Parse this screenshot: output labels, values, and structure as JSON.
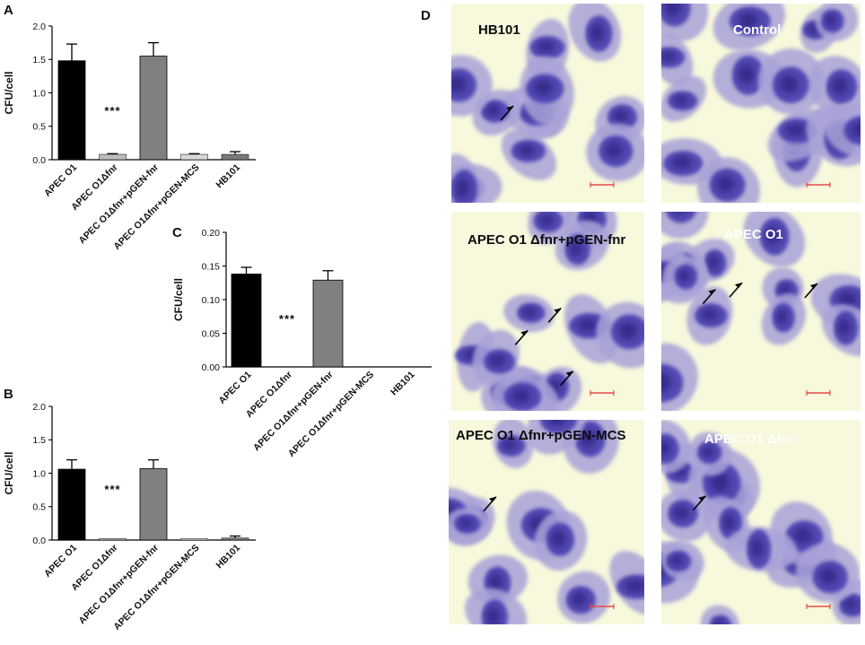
{
  "figure": {
    "panel_labels": [
      "A",
      "B",
      "C",
      "D"
    ]
  },
  "colors": {
    "bar_black": "#000000",
    "bar_light_gray": "#bdbdbd",
    "bar_mid_gray": "#808080",
    "micro_background": "#f7f8dc",
    "cell_purple": "#4a3fb0",
    "scale_bar": "#e64a4a"
  },
  "chart_data": [
    {
      "panel": "A",
      "type": "bar",
      "ylabel": "CFU/cell",
      "xlabel": "",
      "ylim": [
        0,
        2.0
      ],
      "yticks": [
        "0.0",
        "0.5",
        "1.0",
        "1.5",
        "2.0"
      ],
      "categories": [
        "APEC O1",
        "APEC O1Δfnr",
        "APEC O1Δfnr+pGEN-fnr",
        "APEC O1Δfnr+pGEN-MCS",
        "HB101"
      ],
      "values": [
        1.48,
        0.08,
        1.55,
        0.08,
        0.08
      ],
      "errors": [
        0.25,
        0.01,
        0.2,
        0.01,
        0.04
      ],
      "bar_colors": [
        "#000000",
        "#bdbdbd",
        "#808080",
        "#d9d9d9",
        "#7a7a7a"
      ],
      "annotations": [
        {
          "category": "APEC O1Δfnr",
          "text": "***"
        }
      ]
    },
    {
      "panel": "B",
      "type": "bar",
      "ylabel": "CFU/cell",
      "xlabel": "",
      "ylim": [
        0,
        2.0
      ],
      "yticks": [
        "0.0",
        "0.5",
        "1.0",
        "1.5",
        "2.0"
      ],
      "categories": [
        "APEC O1",
        "APEC O1Δfnr",
        "APEC O1Δfnr+pGEN-fnr",
        "APEC O1Δfnr+pGEN-MCS",
        "HB101"
      ],
      "values": [
        1.06,
        0.005,
        1.07,
        0.005,
        0.03
      ],
      "errors": [
        0.14,
        0.0,
        0.13,
        0.0,
        0.03
      ],
      "bar_colors": [
        "#000000",
        "#bdbdbd",
        "#808080",
        "#d9d9d9",
        "#7a7a7a"
      ],
      "annotations": [
        {
          "category": "APEC O1Δfnr",
          "text": "***"
        }
      ]
    },
    {
      "panel": "C",
      "type": "bar",
      "ylabel": "CFU/cell",
      "xlabel": "",
      "ylim": [
        0,
        0.2
      ],
      "yticks": [
        "0.00",
        "0.05",
        "0.10",
        "0.15",
        "0.20"
      ],
      "categories": [
        "APEC O1",
        "APEC O1Δfnr",
        "APEC O1Δfnr+pGEN-fnr",
        "APEC O1Δfnr+pGEN-MCS",
        "HB101"
      ],
      "values": [
        0.138,
        0.0,
        0.129,
        0.0,
        0.0
      ],
      "errors": [
        0.01,
        0.0,
        0.014,
        0.0,
        0.0
      ],
      "bar_colors": [
        "#000000",
        "#bdbdbd",
        "#808080",
        "#d9d9d9",
        "#7a7a7a"
      ],
      "annotations": [
        {
          "category": "APEC O1Δfnr",
          "text": "***"
        }
      ]
    }
  ],
  "micrographs": [
    {
      "label": "HB101",
      "text_style": "dark",
      "arrows": 1
    },
    {
      "label": "Control",
      "text_style": "light",
      "arrows": 0
    },
    {
      "label": "APEC O1 Δfnr+pGEN-fnr",
      "text_style": "dark",
      "arrows": 3
    },
    {
      "label": "APEC O1",
      "text_style": "light",
      "arrows": 3
    },
    {
      "label": "APEC O1 Δfnr+pGEN-MCS",
      "text_style": "dark",
      "arrows": 1
    },
    {
      "label": "APEC O1 Δfnr",
      "text_style": "light",
      "arrows": 1
    }
  ]
}
